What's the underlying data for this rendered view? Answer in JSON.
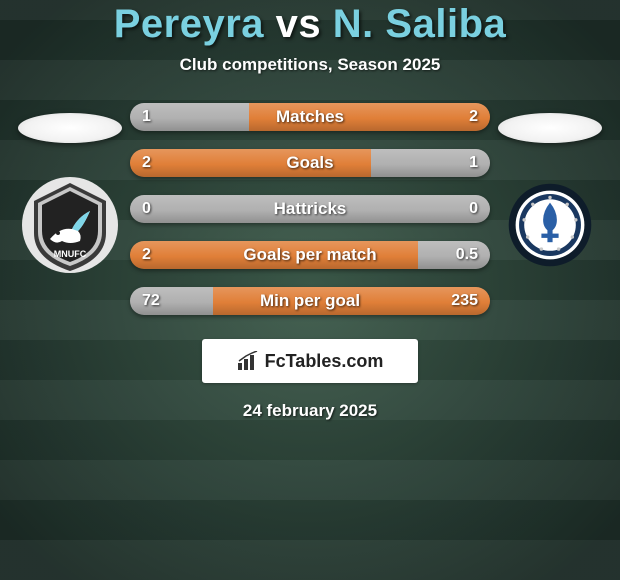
{
  "background_color": "#2a3e37",
  "title": {
    "player1": "Pereyra",
    "separator": "vs",
    "player2": "N. Saliba",
    "player_color": "#7ad0e0",
    "sep_color": "#ffffff",
    "font_size": 40
  },
  "subtitle": {
    "text": "Club competitions, Season 2025",
    "color": "#ffffff",
    "font_size": 17
  },
  "left_team": {
    "name": "Minnesota United FC",
    "badge_colors": {
      "outer": "#e6e6e6",
      "inner": "#3a3a3a",
      "accent": "#7fd6e8"
    }
  },
  "right_team": {
    "name": "CF Montréal",
    "badge_colors": {
      "outer": "#0e1c2a",
      "inner": "#ffffff",
      "accent": "#2a5fa6"
    }
  },
  "stats": [
    {
      "label": "Matches",
      "left_value": "1",
      "right_value": "2",
      "left_pct": 33,
      "right_pct": 67,
      "left_color": "#b0b0b0",
      "right_color": "#e07f38"
    },
    {
      "label": "Goals",
      "left_value": "2",
      "right_value": "1",
      "left_pct": 67,
      "right_pct": 33,
      "left_color": "#e07f38",
      "right_color": "#b0b0b0"
    },
    {
      "label": "Hattricks",
      "left_value": "0",
      "right_value": "0",
      "left_pct": 50,
      "right_pct": 50,
      "left_color": "#b0b0b0",
      "right_color": "#b0b0b0"
    },
    {
      "label": "Goals per match",
      "left_value": "2",
      "right_value": "0.5",
      "left_pct": 80,
      "right_pct": 20,
      "left_color": "#e07f38",
      "right_color": "#b0b0b0"
    },
    {
      "label": "Min per goal",
      "left_value": "72",
      "right_value": "235",
      "left_pct": 23,
      "right_pct": 77,
      "left_color": "#b0b0b0",
      "right_color": "#e07f38"
    }
  ],
  "stat_bar": {
    "height": 28,
    "radius": 14,
    "label_font_size": 17,
    "value_font_size": 16,
    "text_color": "#ffffff"
  },
  "branding": {
    "text": "FcTables.com",
    "background": "#ffffff",
    "text_color": "#222222",
    "icon": "bar-chart-icon"
  },
  "date": {
    "text": "24 february 2025",
    "color": "#ffffff",
    "font_size": 17
  }
}
